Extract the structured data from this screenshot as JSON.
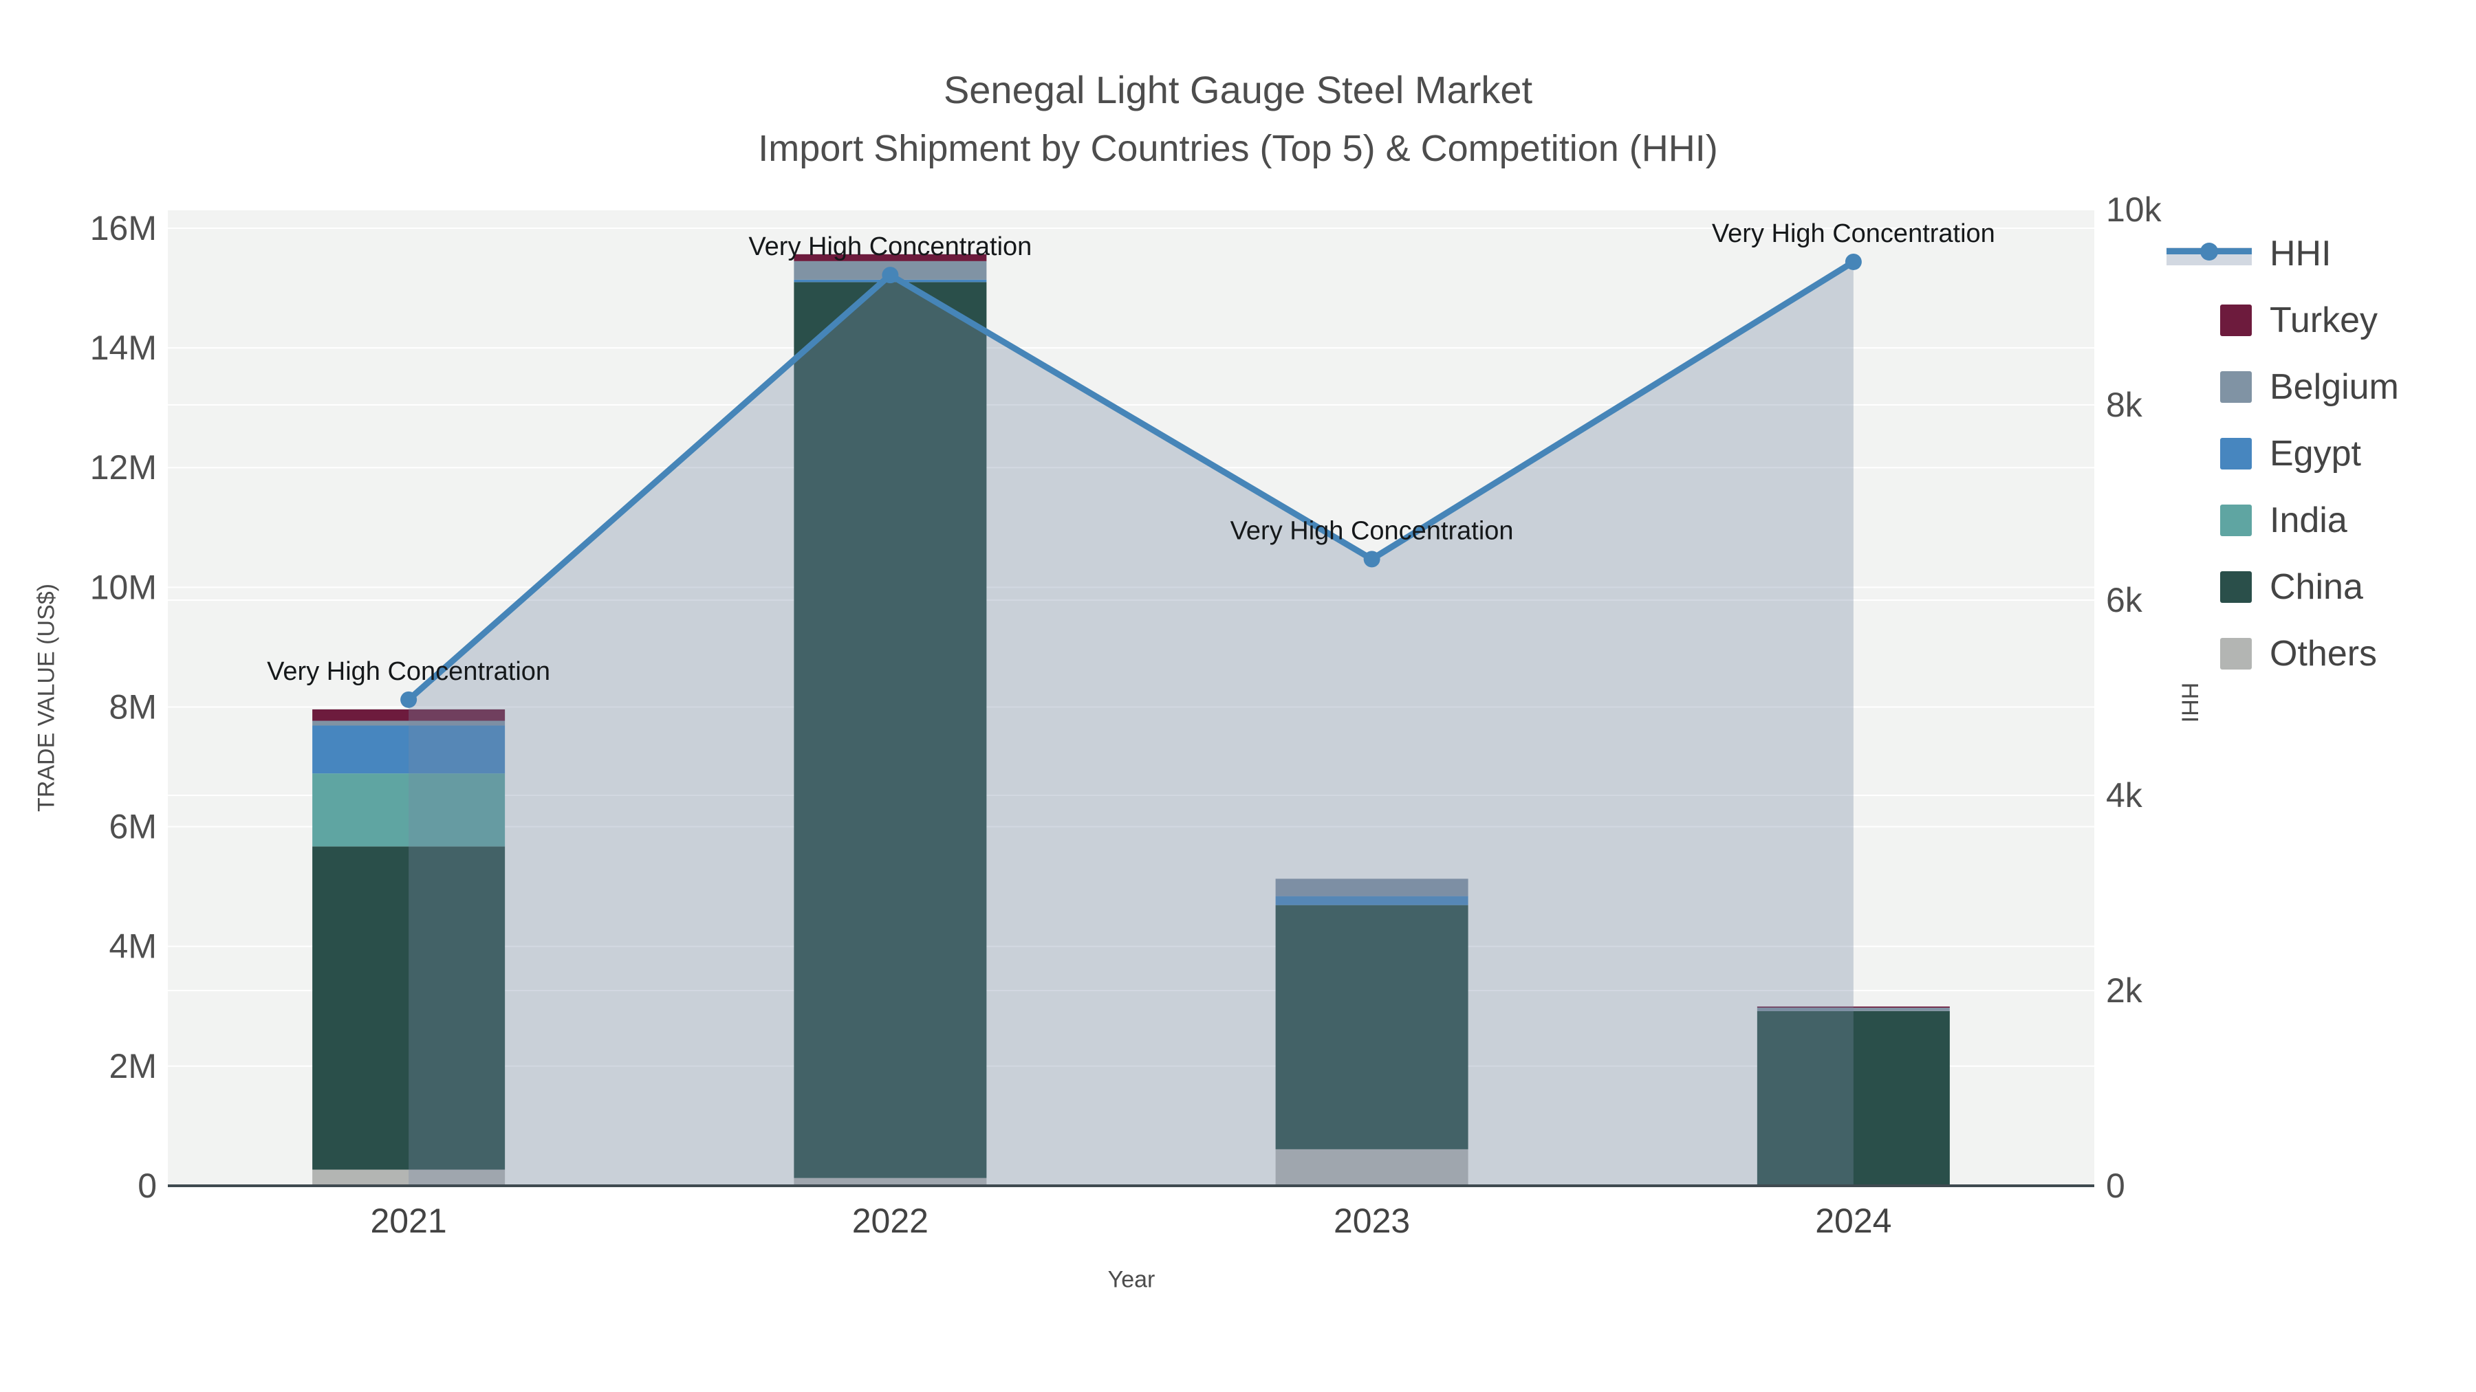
{
  "title": {
    "line1": "Senegal Light Gauge Steel Market",
    "line2": "Import Shipment by Countries (Top 5) & Competition (HHI)"
  },
  "axes": {
    "x": {
      "title": "Year",
      "tick_labels": [
        "2021",
        "2022",
        "2023",
        "2024"
      ]
    },
    "y_left": {
      "title": "TRADE VALUE (US$)",
      "tick_labels": [
        "0",
        "2M",
        "4M",
        "6M",
        "8M",
        "10M",
        "12M",
        "14M",
        "16M"
      ],
      "tick_step": 2000000
    },
    "y_right": {
      "title": "HHI",
      "tick_labels": [
        "0",
        "2k",
        "4k",
        "6k",
        "8k",
        "10k"
      ],
      "tick_step": 2000
    }
  },
  "legend": {
    "items": [
      {
        "label": "HHI",
        "color": "#4685b8",
        "type": "line"
      },
      {
        "label": "Turkey",
        "color": "#6d1b3d",
        "type": "swatch"
      },
      {
        "label": "Belgium",
        "color": "#8093a4",
        "type": "swatch"
      },
      {
        "label": "Egypt",
        "color": "#4786bf",
        "type": "swatch"
      },
      {
        "label": "India",
        "color": "#5fa5a2",
        "type": "swatch"
      },
      {
        "label": "China",
        "color": "#2a4f4a",
        "type": "swatch"
      },
      {
        "label": "Others",
        "color": "#b3b5b3",
        "type": "swatch"
      }
    ]
  },
  "annotations": {
    "per_point_text": [
      "Very High Concentration",
      "Very High Concentration",
      "Very High Concentration",
      "Very High Concentration"
    ]
  },
  "chart_data": {
    "type": "bar",
    "subtype": "stacked bars (left axis, US$) + line with filled area (right axis, HHI index)",
    "categories": [
      "2021",
      "2022",
      "2023",
      "2024"
    ],
    "xlabel": "Year",
    "ylabel_left": "TRADE VALUE (US$)",
    "ylabel_right": "HHI",
    "ylim_left": [
      0,
      16000000
    ],
    "ylim_right": [
      0,
      10000
    ],
    "grid": true,
    "legend_position": "right",
    "series": [
      {
        "name": "Others",
        "axis": "left",
        "color": "#b3b5b3",
        "values": [
          270000,
          130000,
          610000,
          20000
        ]
      },
      {
        "name": "China",
        "axis": "left",
        "color": "#2a4f4a",
        "values": [
          5400000,
          14970000,
          4080000,
          2900000
        ]
      },
      {
        "name": "India",
        "axis": "left",
        "color": "#5fa5a2",
        "values": [
          1220000,
          0,
          0,
          0
        ]
      },
      {
        "name": "Egypt",
        "axis": "left",
        "color": "#4786bf",
        "values": [
          800000,
          40000,
          150000,
          0
        ]
      },
      {
        "name": "Belgium",
        "axis": "left",
        "color": "#8093a4",
        "values": [
          80000,
          310000,
          290000,
          55000
        ]
      },
      {
        "name": "Turkey",
        "axis": "left",
        "color": "#6d1b3d",
        "values": [
          190000,
          115000,
          0,
          20000
        ]
      }
    ],
    "bar_totals": [
      7960000,
      15565000,
      5130000,
      2995000
    ],
    "line_series": {
      "name": "HHI",
      "axis": "right",
      "color": "#4685b8",
      "fill_color": "rgba(119,138,164,0.33)",
      "values": [
        4980,
        9330,
        6420,
        9465
      ]
    }
  },
  "style": {
    "plot_bg": "#f2f3f2",
    "grid_color": "#ffffff",
    "axis_line_color": "#3f4a50",
    "tick_color": "#4f4f4f",
    "annotation_color": "#15181a"
  }
}
